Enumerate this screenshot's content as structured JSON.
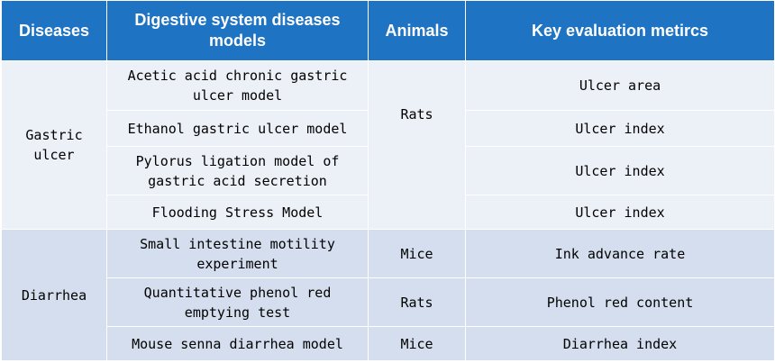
{
  "table": {
    "headers": [
      "Diseases",
      "Digestive system diseases models",
      "Animals",
      "Key evaluation metircs"
    ],
    "groups": [
      {
        "disease": "Gastric ulcer",
        "rows": [
          {
            "model": "Acetic acid chronic gastric ulcer model",
            "metric": "Ulcer area"
          },
          {
            "model": "Ethanol gastric ulcer model",
            "metric": "Ulcer index"
          },
          {
            "model": "Pylorus ligation model of gastric acid secretion",
            "metric": "Ulcer index"
          },
          {
            "model": "Flooding Stress Model",
            "metric": "Ulcer index"
          }
        ],
        "animal": "Rats"
      },
      {
        "disease": "Diarrhea",
        "rows": [
          {
            "model": "Small intestine motility experiment",
            "animal": "Mice",
            "metric": "Ink advance rate"
          },
          {
            "model": "Quantitative phenol red emptying test",
            "animal": "Rats",
            "metric": "Phenol red content"
          },
          {
            "model": "Mouse senna diarrhea model",
            "animal": "Mice",
            "metric": "Diarrhea index"
          }
        ]
      }
    ]
  }
}
